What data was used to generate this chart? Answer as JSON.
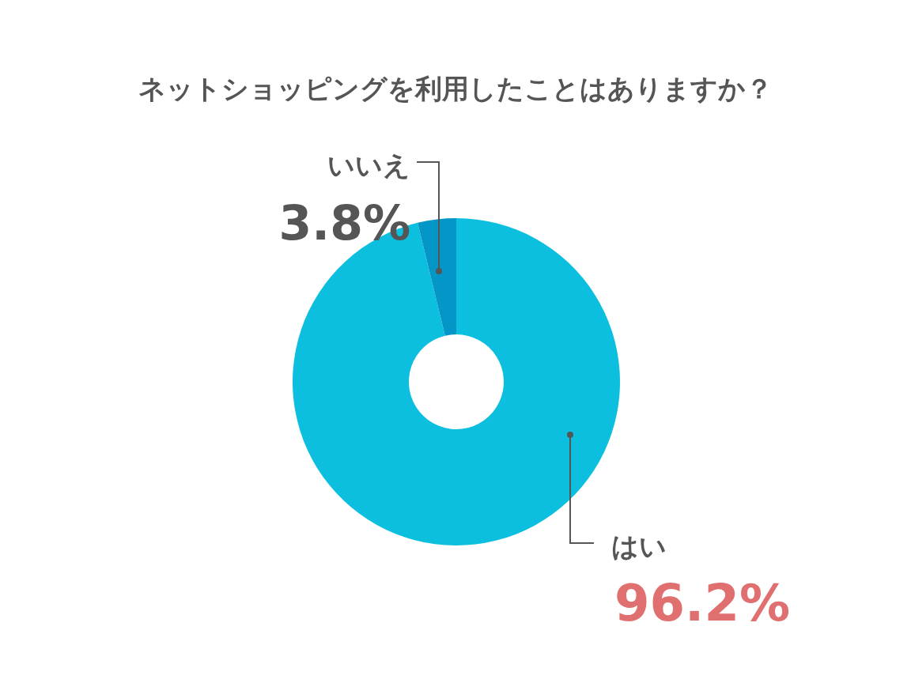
{
  "chart_data": {
    "type": "donut",
    "title": "ネットショッピングを利用したことはありますか？",
    "categories": [
      "はい",
      "いいえ"
    ],
    "values": [
      96.2,
      3.8
    ],
    "colors": [
      "#0dbfdf",
      "#0596c8"
    ],
    "value_labels": [
      "96.2%",
      "3.8%"
    ]
  }
}
